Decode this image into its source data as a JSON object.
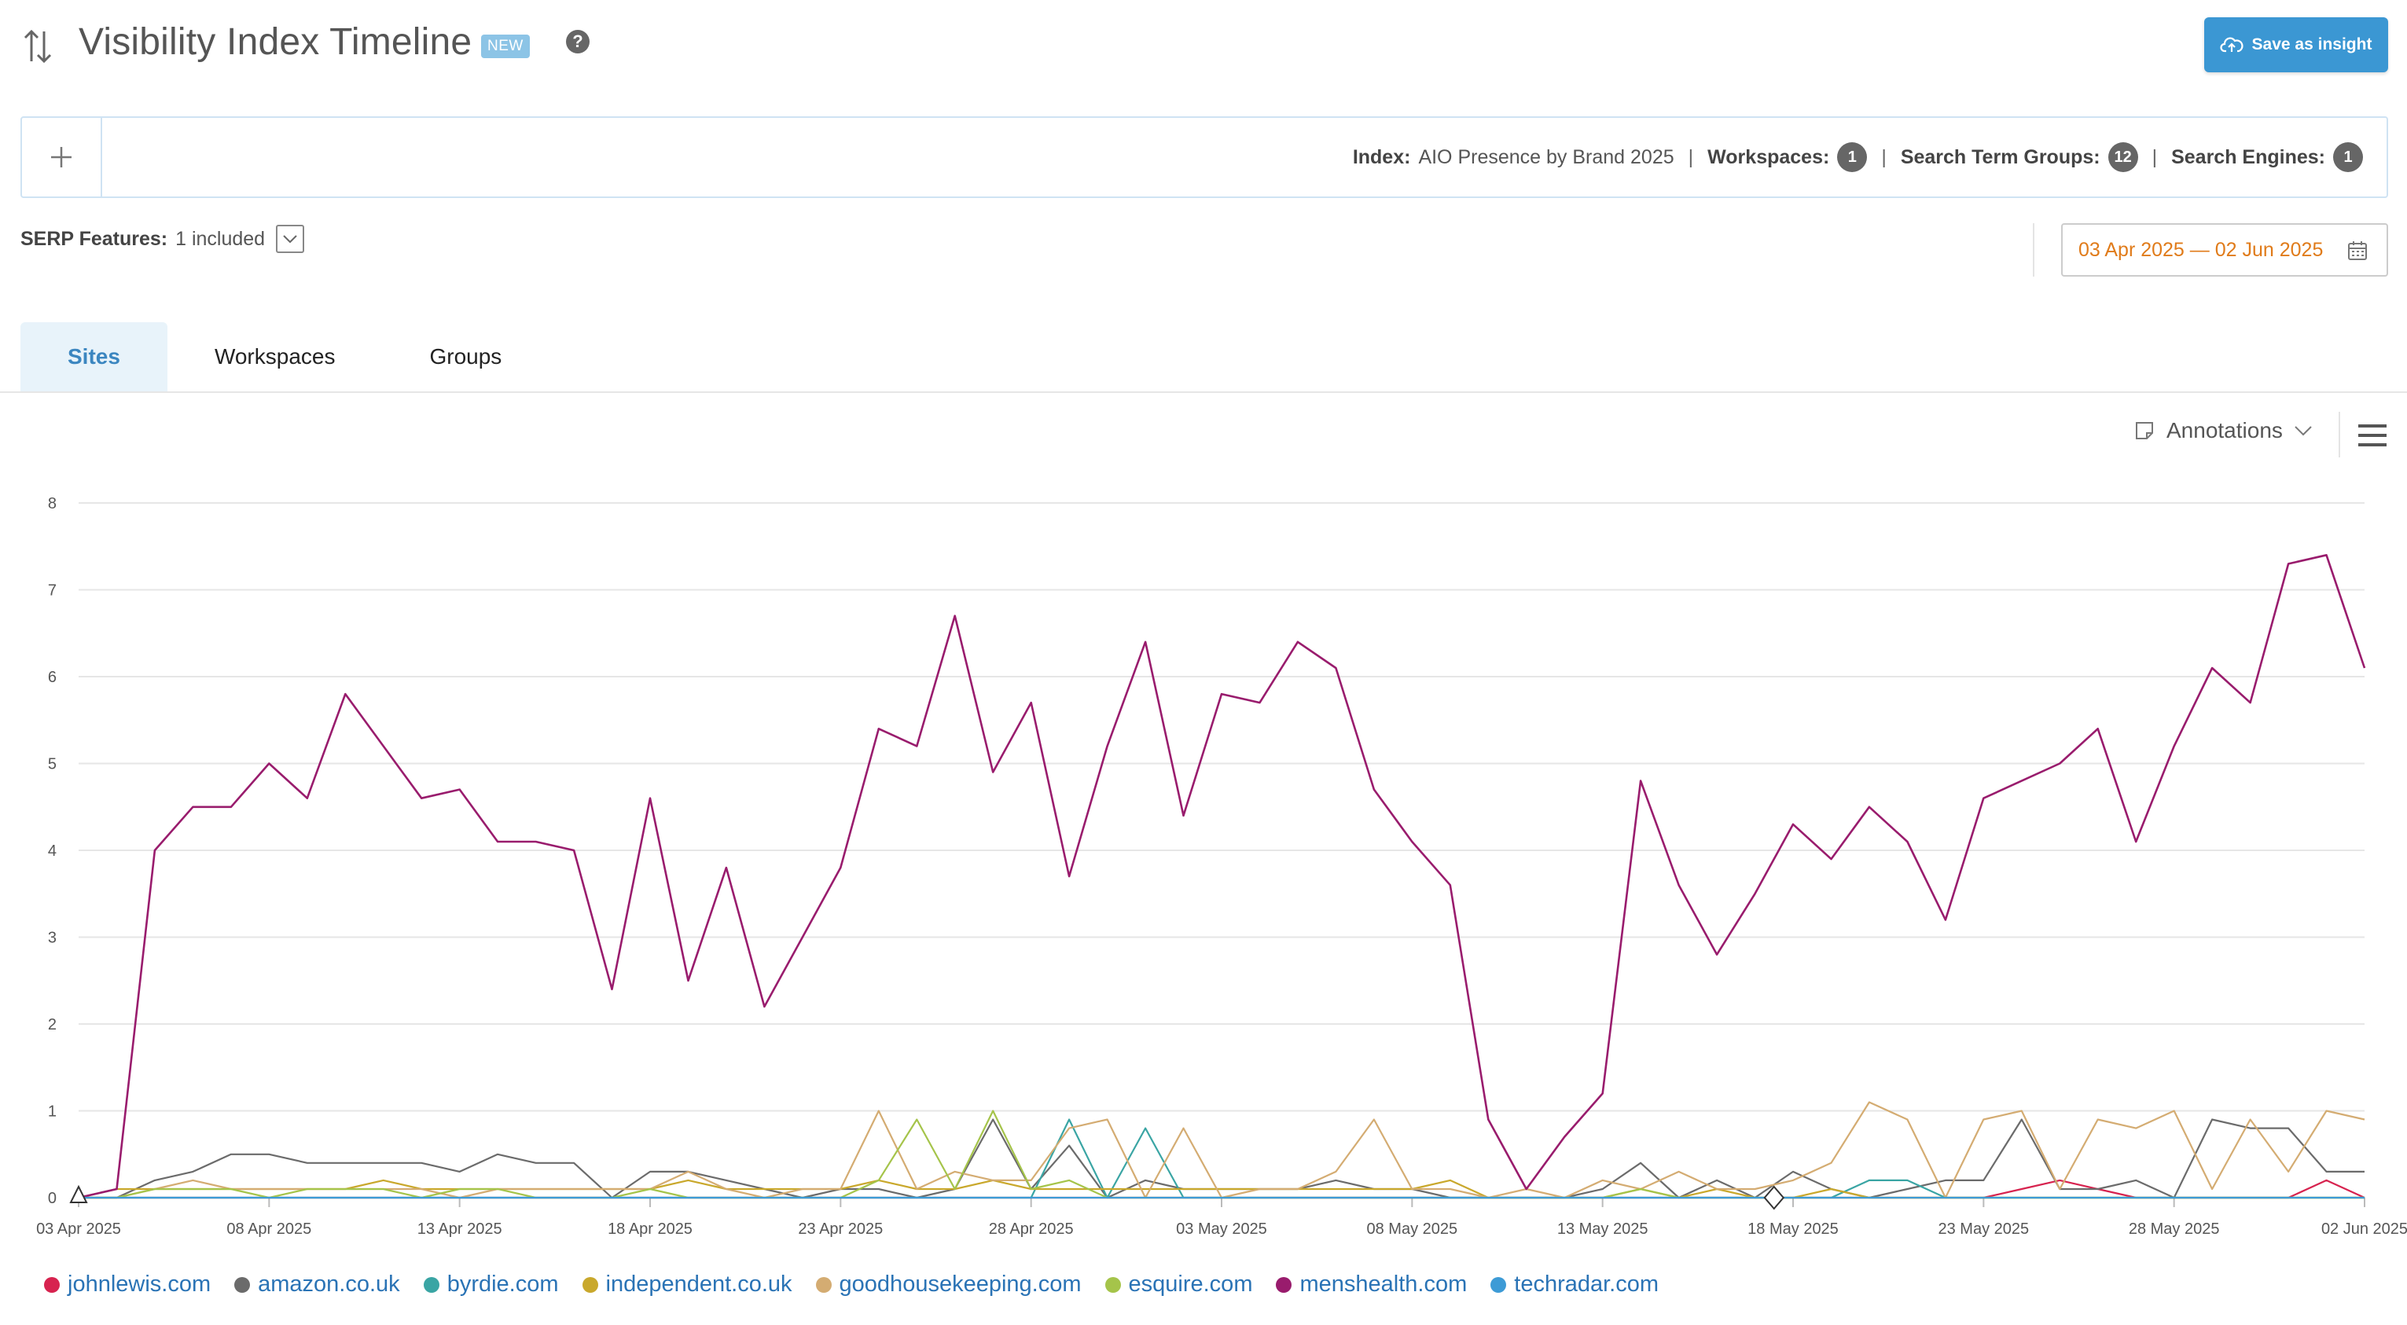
{
  "header": {
    "title": "Visibility Index Timeline",
    "badge": "NEW",
    "help": "?",
    "save_label": "Save as insight"
  },
  "filters": {
    "index_label": "Index:",
    "index_value": "AIO Presence by Brand 2025",
    "workspaces_label": "Workspaces:",
    "workspaces_count": "1",
    "groups_label": "Search Term Groups:",
    "groups_count": "12",
    "engines_label": "Search Engines:",
    "engines_count": "1",
    "separator": "|"
  },
  "serp": {
    "label": "SERP Features:",
    "value": "1 included"
  },
  "date_range": "03 Apr 2025 — 02 Jun 2025",
  "tabs": [
    {
      "label": "Sites",
      "active": true
    },
    {
      "label": "Workspaces",
      "active": false
    },
    {
      "label": "Groups",
      "active": false
    }
  ],
  "toolbar": {
    "annotations_label": "Annotations"
  },
  "icons": [
    "sort-arrows-icon",
    "help-icon",
    "cloud-upload-icon",
    "plus-icon",
    "chevron-down-icon",
    "calendar-icon",
    "note-icon",
    "hamburger-menu-icon"
  ],
  "colors": {
    "accent": "#3b97d3",
    "date": "#e07b1a",
    "link": "#2a73b5"
  },
  "chart_data": {
    "type": "line",
    "ylim": [
      0,
      8
    ],
    "yticks": [
      0,
      1,
      2,
      3,
      4,
      5,
      6,
      7,
      8
    ],
    "x_tick_labels": [
      "03 Apr 2025",
      "08 Apr 2025",
      "13 Apr 2025",
      "18 Apr 2025",
      "23 Apr 2025",
      "28 Apr 2025",
      "03 May 2025",
      "08 May 2025",
      "13 May 2025",
      "18 May 2025",
      "23 May 2025",
      "28 May 2025",
      "02 Jun 2025"
    ],
    "x_tick_index": [
      0,
      5,
      10,
      15,
      20,
      25,
      30,
      35,
      40,
      45,
      50,
      55,
      60
    ],
    "grid": true,
    "annotation_markers": [
      {
        "date": "03 Apr 2025",
        "shape": "triangle"
      },
      {
        "date": "17 May 2025",
        "shape": "diamond"
      }
    ],
    "series": [
      {
        "name": "johnlewis.com",
        "color": "#d7234f",
        "values": [
          0,
          0,
          0,
          0,
          0,
          0,
          0,
          0,
          0,
          0,
          0,
          0,
          0,
          0,
          0,
          0,
          0,
          0,
          0,
          0,
          0,
          0,
          0,
          0,
          0,
          0,
          0,
          0,
          0,
          0,
          0,
          0,
          0,
          0,
          0,
          0,
          0,
          0,
          0,
          0,
          0,
          0,
          0,
          0,
          0,
          0,
          0,
          0,
          0,
          0,
          0,
          0.1,
          0.2,
          0.1,
          0,
          0,
          0,
          0,
          0,
          0.2,
          0
        ]
      },
      {
        "name": "amazon.co.uk",
        "color": "#6b6b6b",
        "values": [
          0,
          0,
          0.2,
          0.3,
          0.5,
          0.5,
          0.4,
          0.4,
          0.4,
          0.4,
          0.3,
          0.5,
          0.4,
          0.4,
          0,
          0.3,
          0.3,
          0.2,
          0.1,
          0,
          0.1,
          0.1,
          0,
          0.1,
          0.9,
          0.1,
          0.6,
          0,
          0.2,
          0.1,
          0.1,
          0.1,
          0.1,
          0.2,
          0.1,
          0.1,
          0,
          0,
          0,
          0,
          0.1,
          0.4,
          0,
          0.2,
          0,
          0.3,
          0.1,
          0,
          0.1,
          0.2,
          0.2,
          0.9,
          0.1,
          0.1,
          0.2,
          0,
          0.9,
          0.8,
          0.8,
          0.3,
          0.3
        ]
      },
      {
        "name": "byrdie.com",
        "color": "#3aa5a4",
        "values": [
          0,
          0,
          0,
          0,
          0,
          0,
          0,
          0,
          0,
          0,
          0,
          0,
          0,
          0,
          0,
          0,
          0,
          0,
          0,
          0,
          0,
          0,
          0,
          0,
          0,
          0,
          0.9,
          0,
          0.8,
          0,
          0,
          0,
          0,
          0,
          0,
          0,
          0,
          0,
          0,
          0,
          0,
          0,
          0,
          0,
          0,
          0,
          0,
          0.2,
          0.2,
          0,
          0,
          0,
          0,
          0,
          0,
          0,
          0,
          0,
          0,
          0,
          0
        ]
      },
      {
        "name": "independent.co.uk",
        "color": "#c9a82c",
        "values": [
          0,
          0.1,
          0.1,
          0.1,
          0.1,
          0.1,
          0.1,
          0.1,
          0.2,
          0.1,
          0.1,
          0.1,
          0.1,
          0.1,
          0.1,
          0.1,
          0.2,
          0.1,
          0.1,
          0.1,
          0.1,
          0.2,
          0.1,
          0.1,
          0.2,
          0.1,
          0.1,
          0.1,
          0.1,
          0.1,
          0.1,
          0.1,
          0.1,
          0.1,
          0.1,
          0.1,
          0.2,
          0,
          0,
          0,
          0,
          0.1,
          0,
          0.1,
          0,
          0,
          0.1,
          0,
          0,
          0,
          0,
          0,
          0,
          0,
          0,
          0,
          0,
          0,
          0,
          0,
          0
        ]
      },
      {
        "name": "goodhousekeeping.com",
        "color": "#d4ac72",
        "values": [
          0,
          0,
          0.1,
          0.2,
          0.1,
          0.1,
          0.1,
          0.1,
          0.1,
          0.1,
          0,
          0.1,
          0.1,
          0.1,
          0.1,
          0.1,
          0.3,
          0.1,
          0,
          0.1,
          0.1,
          1.0,
          0.1,
          0.3,
          0.2,
          0.2,
          0.8,
          0.9,
          0,
          0.8,
          0,
          0.1,
          0.1,
          0.3,
          0.9,
          0.1,
          0.1,
          0,
          0.1,
          0,
          0.2,
          0.1,
          0.3,
          0.1,
          0.1,
          0.2,
          0.4,
          1.1,
          0.9,
          0,
          0.9,
          1.0,
          0.1,
          0.9,
          0.8,
          1.0,
          0.1,
          0.9,
          0.3,
          1.0,
          0.9
        ]
      },
      {
        "name": "esquire.com",
        "color": "#a5c44a",
        "values": [
          0,
          0,
          0.1,
          0.1,
          0.1,
          0,
          0.1,
          0.1,
          0.1,
          0,
          0.1,
          0.1,
          0,
          0,
          0,
          0.1,
          0,
          0,
          0,
          0,
          0,
          0.2,
          0.9,
          0.1,
          1.0,
          0.1,
          0.2,
          0,
          0,
          0,
          0,
          0,
          0,
          0,
          0,
          0,
          0,
          0,
          0,
          0,
          0,
          0.1,
          0,
          0,
          0,
          0,
          0,
          0,
          0,
          0,
          0,
          0,
          0,
          0,
          0,
          0,
          0,
          0,
          0,
          0,
          0
        ]
      },
      {
        "name": "menshealth.com",
        "color": "#991c6d",
        "values": [
          0,
          0.1,
          4.0,
          4.5,
          4.5,
          5.0,
          4.6,
          5.8,
          5.2,
          4.6,
          4.7,
          4.1,
          4.1,
          4.0,
          2.4,
          4.6,
          2.5,
          3.8,
          2.2,
          3.0,
          3.8,
          5.4,
          5.2,
          6.7,
          4.9,
          5.7,
          3.7,
          5.2,
          6.4,
          4.4,
          5.8,
          5.7,
          6.4,
          6.1,
          4.7,
          4.1,
          3.6,
          0.9,
          0.1,
          0.7,
          1.2,
          4.8,
          3.6,
          2.8,
          3.5,
          4.3,
          3.9,
          4.5,
          4.1,
          3.2,
          4.6,
          4.8,
          5.0,
          5.4,
          4.1,
          5.2,
          6.1,
          5.7,
          7.3,
          7.4,
          6.1
        ]
      },
      {
        "name": "techradar.com",
        "color": "#3d9bd6",
        "values": [
          0,
          0,
          0,
          0,
          0,
          0,
          0,
          0,
          0,
          0,
          0,
          0,
          0,
          0,
          0,
          0,
          0,
          0,
          0,
          0,
          0,
          0,
          0,
          0,
          0,
          0,
          0,
          0,
          0,
          0,
          0,
          0,
          0,
          0,
          0,
          0,
          0,
          0,
          0,
          0,
          0,
          0,
          0,
          0,
          0,
          0,
          0,
          0,
          0,
          0,
          0,
          0,
          0,
          0,
          0,
          0,
          0,
          0,
          0,
          0,
          0
        ]
      }
    ]
  }
}
